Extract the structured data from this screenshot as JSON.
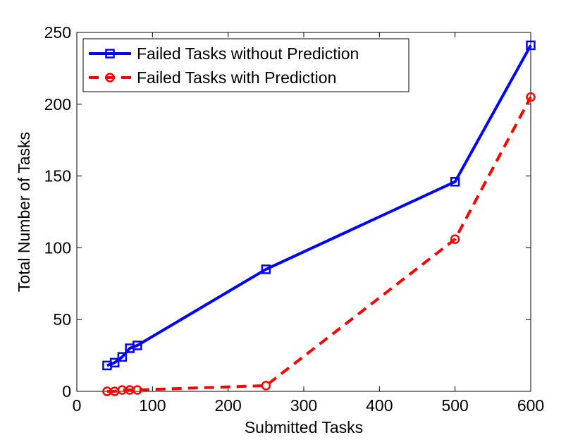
{
  "chart_data": {
    "type": "line",
    "xlabel": "Submitted Tasks",
    "ylabel": "Total Number of Tasks",
    "xlim": [
      0,
      600
    ],
    "ylim": [
      0,
      250
    ],
    "xticks": [
      0,
      100,
      200,
      300,
      400,
      500,
      600
    ],
    "yticks": [
      0,
      50,
      100,
      150,
      200,
      250
    ],
    "grid": false,
    "legend_position": "top-left",
    "series": [
      {
        "name": "Failed Tasks without Prediction",
        "color": "#0000ff",
        "line_style": "solid",
        "marker": "square",
        "x": [
          40,
          50,
          60,
          70,
          80,
          250,
          500,
          600
        ],
        "y": [
          18,
          20,
          24,
          30,
          32,
          85,
          146,
          241
        ]
      },
      {
        "name": "Failed Tasks with Prediction",
        "color": "#ff0000",
        "line_style": "dashed",
        "marker": "circle",
        "x": [
          40,
          50,
          60,
          70,
          80,
          250,
          500,
          600
        ],
        "y": [
          0,
          0,
          1,
          1,
          1,
          4,
          106,
          205
        ]
      }
    ]
  }
}
